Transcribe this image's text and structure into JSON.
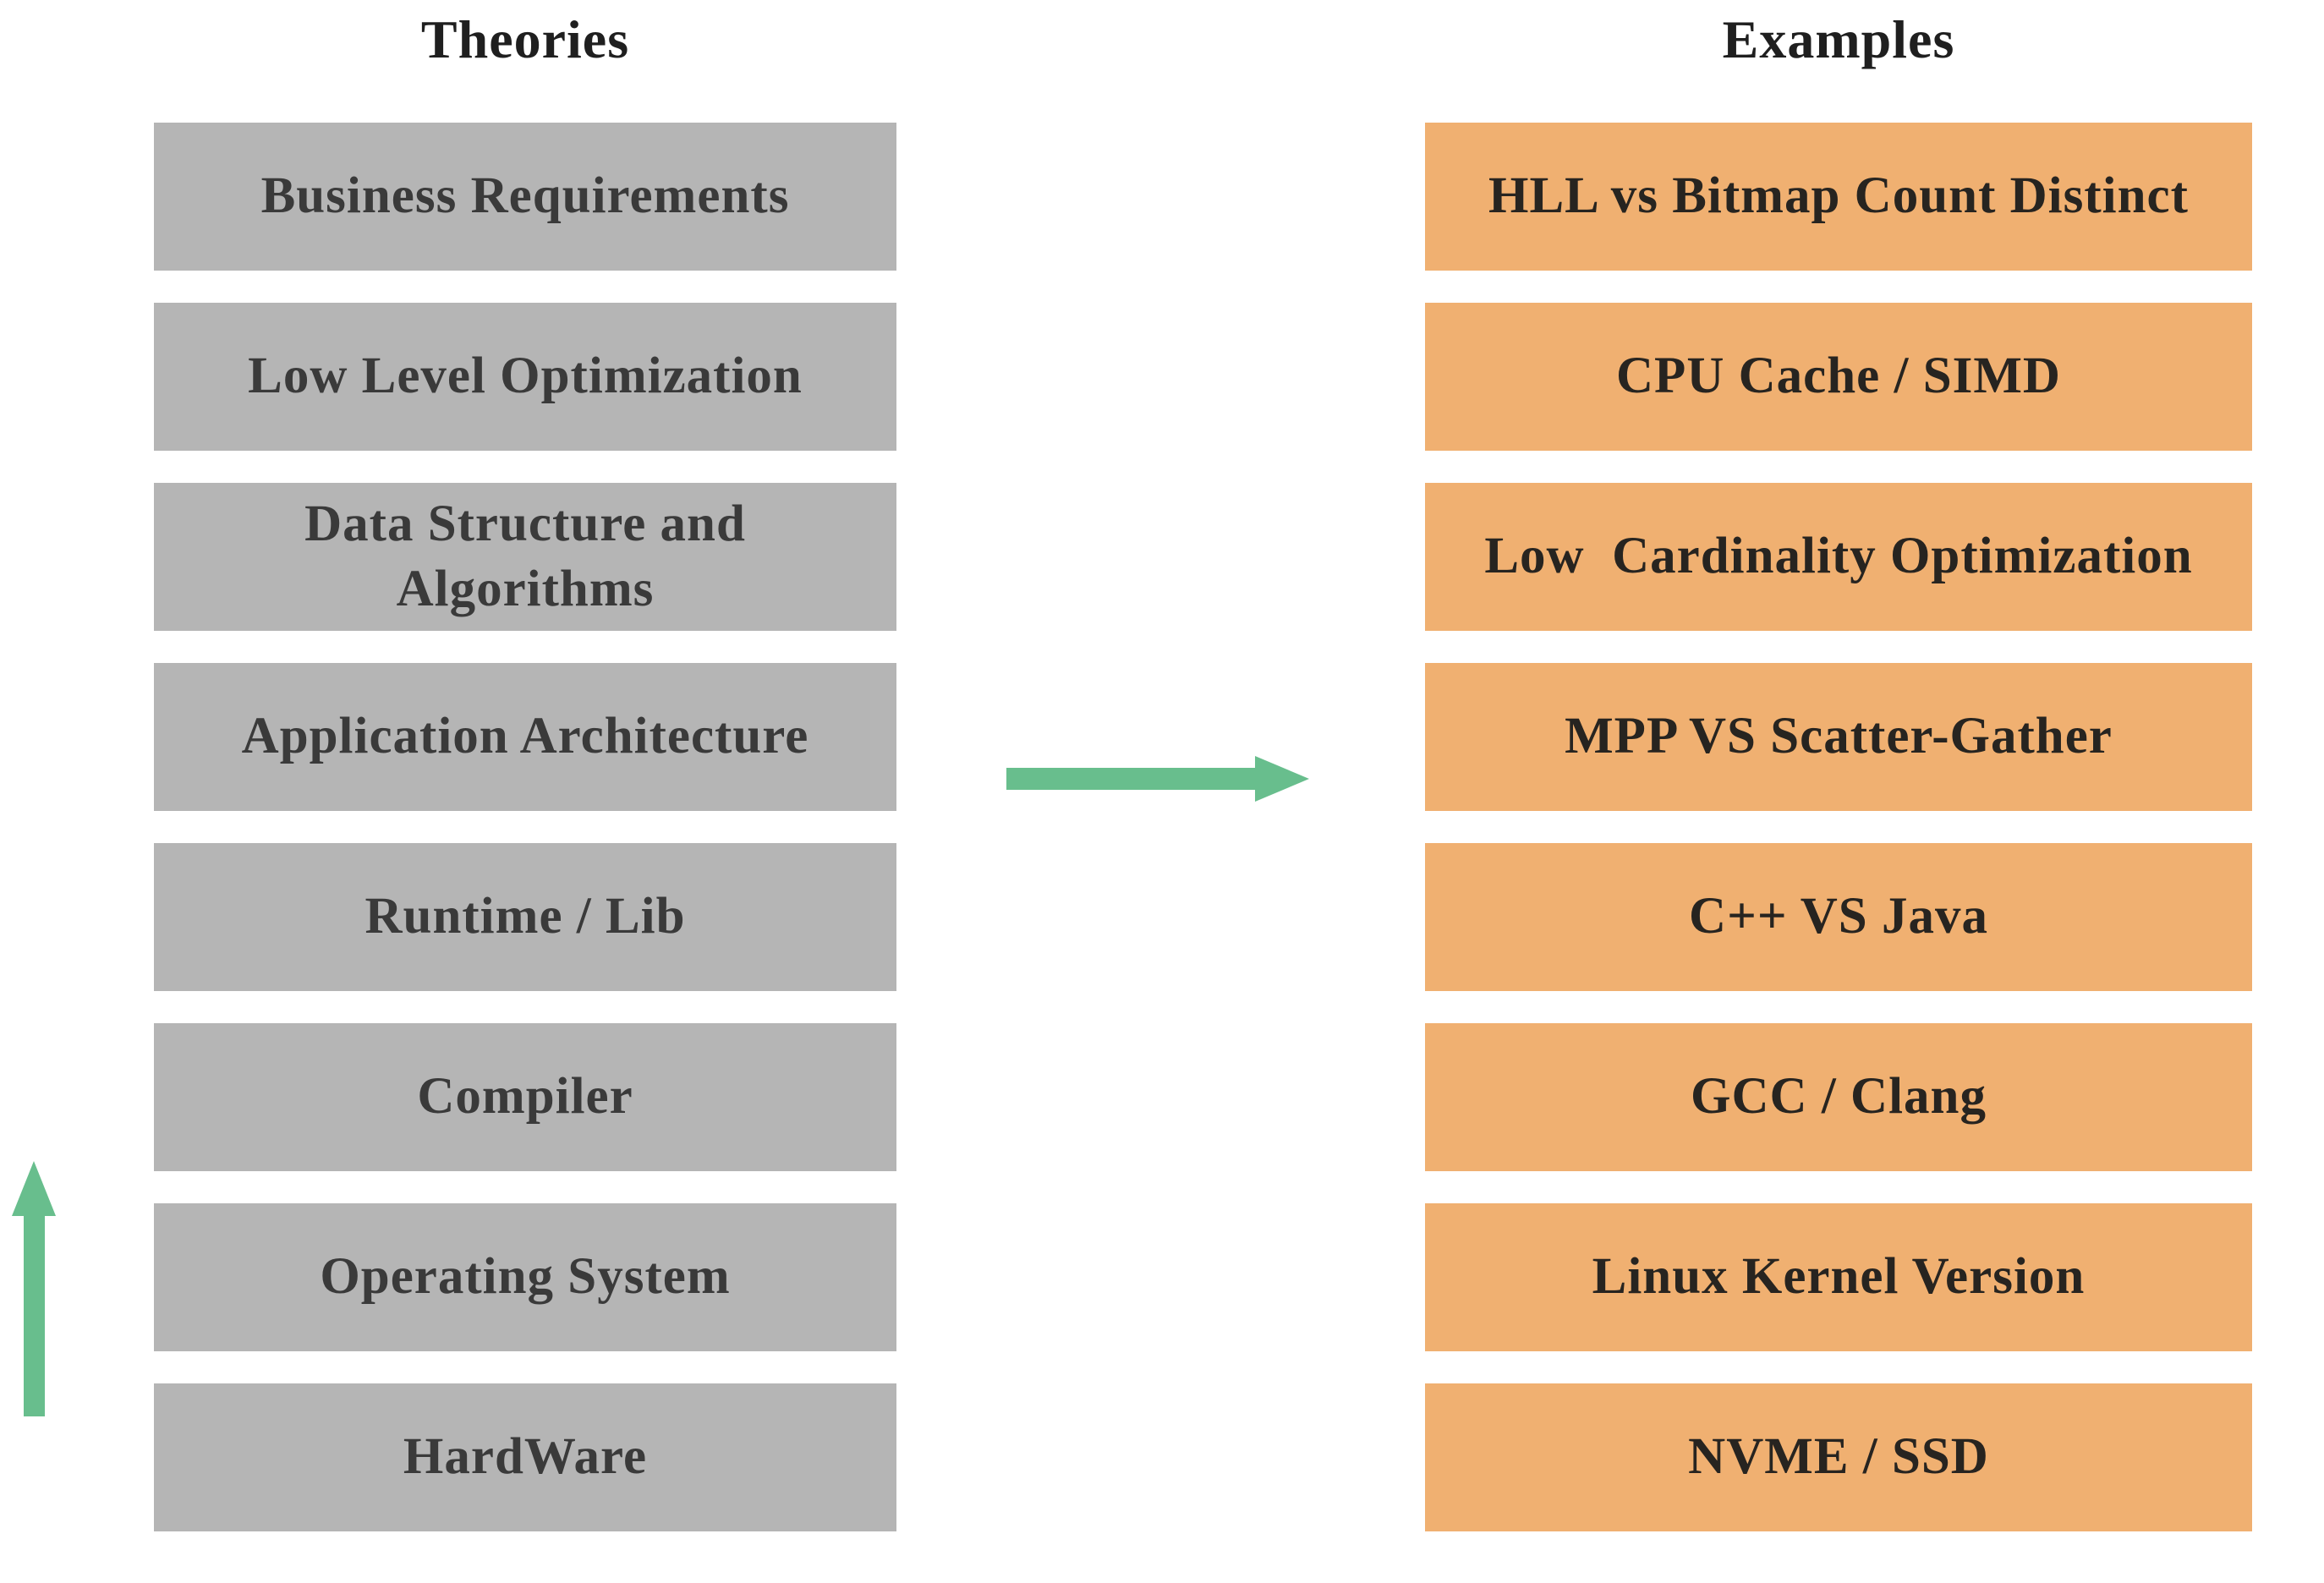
{
  "colors": {
    "canvas-bg": "#ffffff",
    "theory-box-bg": "#b5b5b5",
    "example-box-bg": "#f0b071",
    "arrow-green": "#68be8d",
    "theory-text": "#3a3a3a",
    "example-text": "#272420",
    "title-text": "#1f1f1f"
  },
  "left_column": {
    "title": "Theories",
    "items": [
      "Business Requirements",
      "Low Level Optimization",
      "Data Structure and\nAlgorithms",
      "Application Architecture",
      "Runtime / Lib",
      "Compiler",
      "Operating System",
      "HardWare"
    ]
  },
  "right_column": {
    "title": "Examples",
    "items": [
      "HLL vs Bitmap Count Distinct",
      "CPU Cache / SIMD",
      "Low  Cardinality Optimization",
      "MPP VS Scatter-Gather",
      "C++ VS Java",
      "GCC / Clang",
      "Linux Kernel Version",
      "NVME / SSD"
    ]
  },
  "icons": {
    "right_arrow": "theories-map-to-examples",
    "up_arrow": "stack-bottom-up-direction"
  }
}
